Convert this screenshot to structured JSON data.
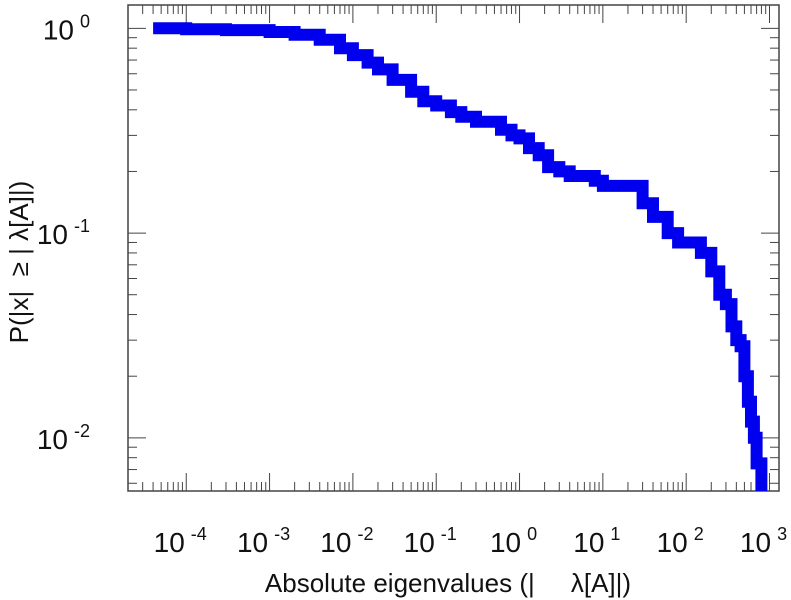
{
  "chart_data": {
    "type": "line",
    "title": "",
    "xlabel": "Absolute eigenvalues (|     λ[A]|)",
    "ylabel": "P(|x|  ≥ | λ[A]|)",
    "xscale": "log",
    "yscale": "log",
    "xlim": [
      2e-05,
      1300
    ],
    "ylim": [
      0.0055,
      1.3
    ],
    "grid": false,
    "legend": "none",
    "x_ticks": [
      {
        "base": "10",
        "exp": "-4",
        "value": 0.0001
      },
      {
        "base": "10",
        "exp": "-3",
        "value": 0.001
      },
      {
        "base": "10",
        "exp": "-2",
        "value": 0.01
      },
      {
        "base": "10",
        "exp": "-1",
        "value": 0.1
      },
      {
        "base": "10",
        "exp": "0",
        "value": 1
      },
      {
        "base": "10",
        "exp": "1",
        "value": 10
      },
      {
        "base": "10",
        "exp": "2",
        "value": 100
      },
      {
        "base": "10",
        "exp": "3",
        "value": 1000
      }
    ],
    "y_ticks": [
      {
        "base": "10",
        "exp": "0",
        "value": 1
      },
      {
        "base": "10",
        "exp": "-1",
        "value": 0.1
      },
      {
        "base": "10",
        "exp": "-2",
        "value": 0.01
      }
    ],
    "series": [
      {
        "color": "#0000ee",
        "x": [
          4e-05,
          0.0001,
          0.0003,
          0.001,
          0.002,
          0.004,
          0.007,
          0.01,
          0.015,
          0.02,
          0.03,
          0.05,
          0.07,
          0.1,
          0.15,
          0.2,
          0.3,
          0.45,
          0.6,
          0.8,
          1.0,
          1.3,
          1.7,
          2.2,
          3,
          4,
          5,
          6,
          8,
          10,
          14,
          20,
          30,
          40,
          60,
          80,
          100,
          150,
          200,
          250,
          300,
          350,
          400,
          450,
          500,
          550,
          600,
          650,
          700,
          750,
          800
        ],
        "y": [
          1.0,
          0.99,
          0.98,
          0.96,
          0.93,
          0.88,
          0.8,
          0.74,
          0.68,
          0.63,
          0.56,
          0.49,
          0.44,
          0.42,
          0.39,
          0.37,
          0.35,
          0.35,
          0.32,
          0.3,
          0.29,
          0.26,
          0.24,
          0.21,
          0.2,
          0.19,
          0.19,
          0.19,
          0.18,
          0.17,
          0.17,
          0.17,
          0.14,
          0.12,
          0.1,
          0.09,
          0.09,
          0.08,
          0.065,
          0.05,
          0.045,
          0.035,
          0.03,
          0.028,
          0.02,
          0.015,
          0.012,
          0.01,
          0.0075,
          0.0075,
          0.0055
        ]
      }
    ]
  }
}
